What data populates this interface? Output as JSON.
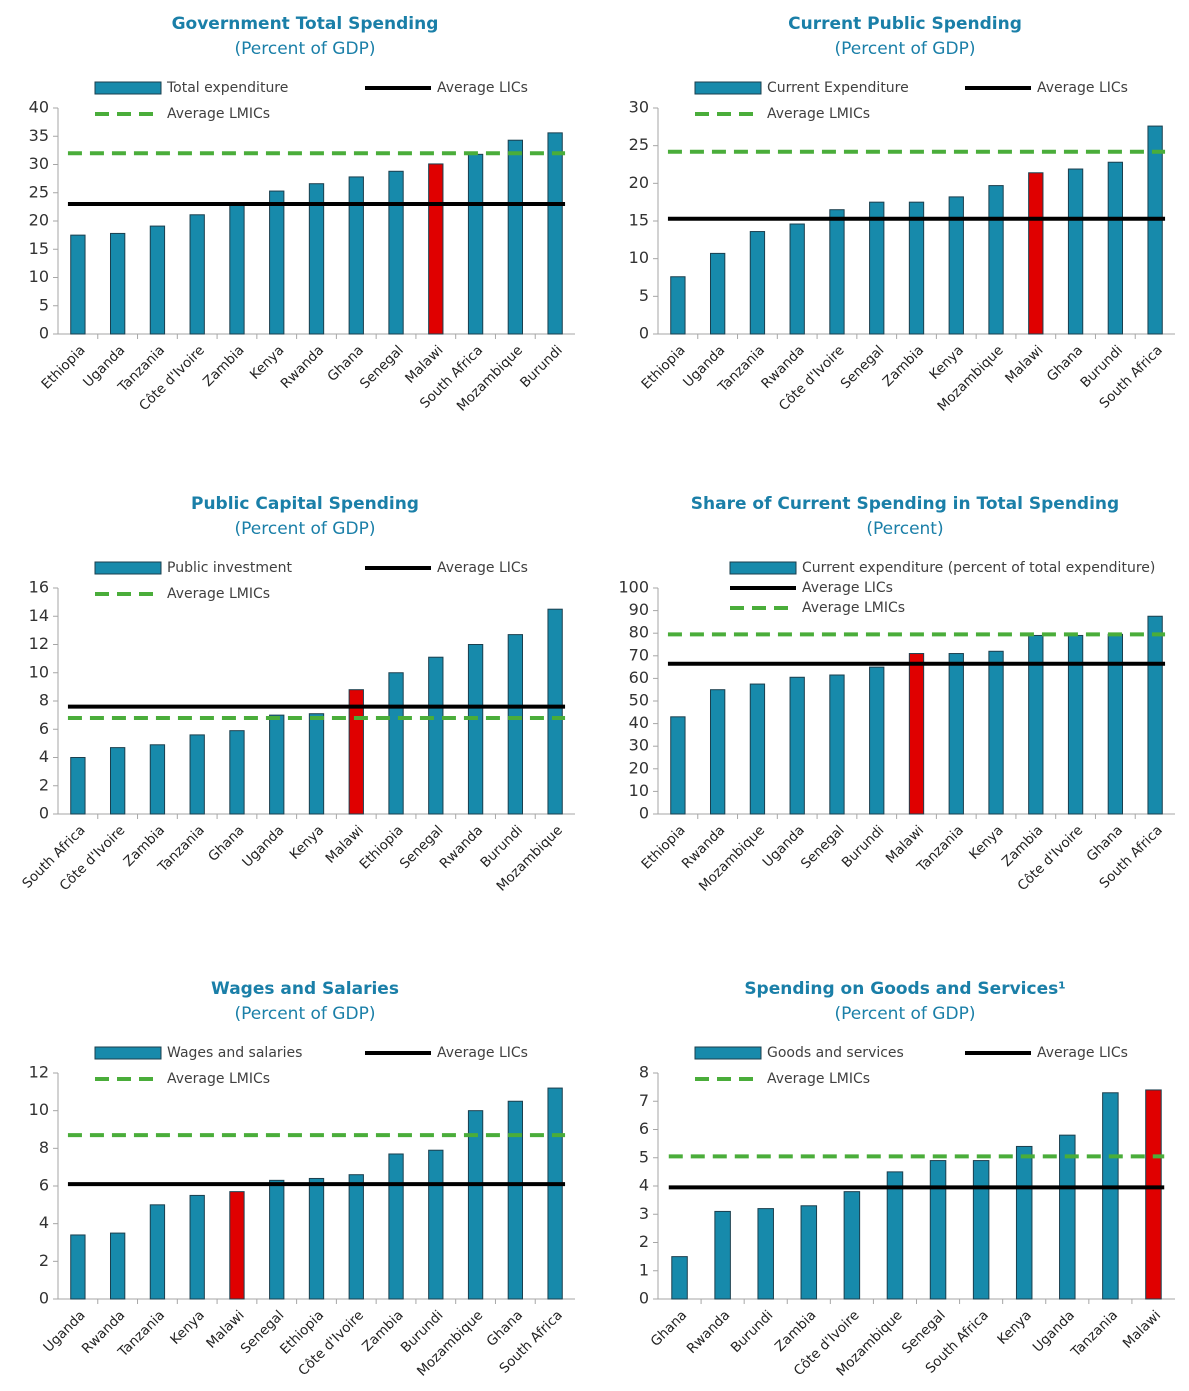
{
  "chart_data": [
    {
      "type": "bar",
      "title": "Government Total Spending",
      "subtitle": "(Percent of GDP)",
      "categories": [
        "Ethiopia",
        "Uganda",
        "Tanzania",
        "Côte d'Ivoire",
        "Zambia",
        "Kenya",
        "Rwanda",
        "Ghana",
        "Senegal",
        "Malawi",
        "South Africa",
        "Mozambique",
        "Burundi"
      ],
      "series": [
        {
          "name": "Total expenditure",
          "color": "#178aab",
          "values": [
            17.5,
            17.8,
            19.1,
            21.1,
            22.8,
            25.3,
            26.6,
            27.8,
            28.8,
            30.1,
            31.8,
            34.3,
            35.6
          ],
          "colors": [
            "#178aab",
            "#178aab",
            "#178aab",
            "#178aab",
            "#178aab",
            "#178aab",
            "#178aab",
            "#178aab",
            "#178aab",
            "#e00000",
            "#178aab",
            "#178aab",
            "#178aab"
          ]
        }
      ],
      "lines": [
        {
          "name": "Average LICs",
          "value": 23.0,
          "color": "#000000",
          "style": "solid"
        },
        {
          "name": "Average LMICs",
          "value": 32.0,
          "color": "#4aad3a",
          "style": "dashed"
        }
      ],
      "ylim": [
        0,
        40
      ],
      "yticks": [
        0,
        5,
        10,
        15,
        20,
        25,
        30,
        35,
        40
      ],
      "legend": "two-column"
    },
    {
      "type": "bar",
      "title": "Current Public Spending",
      "subtitle": "(Percent of GDP)",
      "categories": [
        "Ethiopia",
        "Uganda",
        "Tanzania",
        "Rwanda",
        "Côte d'Ivoire",
        "Senegal",
        "Zambia",
        "Kenya",
        "Mozambique",
        "Malawi",
        "Ghana",
        "Burundi",
        "South Africa"
      ],
      "series": [
        {
          "name": "Current Expenditure",
          "color": "#178aab",
          "values": [
            7.6,
            10.7,
            13.6,
            14.6,
            16.5,
            17.5,
            17.5,
            18.2,
            19.7,
            21.4,
            21.9,
            22.8,
            27.6
          ],
          "colors": [
            "#178aab",
            "#178aab",
            "#178aab",
            "#178aab",
            "#178aab",
            "#178aab",
            "#178aab",
            "#178aab",
            "#178aab",
            "#e00000",
            "#178aab",
            "#178aab",
            "#178aab"
          ]
        }
      ],
      "lines": [
        {
          "name": "Average LICs",
          "value": 15.3,
          "color": "#000000",
          "style": "solid"
        },
        {
          "name": "Average LMICs",
          "value": 24.2,
          "color": "#4aad3a",
          "style": "dashed"
        }
      ],
      "ylim": [
        0,
        30
      ],
      "yticks": [
        0,
        5,
        10,
        15,
        20,
        25,
        30
      ],
      "legend": "two-column"
    },
    {
      "type": "bar",
      "title": "Public Capital Spending",
      "subtitle": "(Percent of GDP)",
      "categories": [
        "South Africa",
        "Côte d'Ivoire",
        "Zambia",
        "Tanzania",
        "Ghana",
        "Uganda",
        "Kenya",
        "Malawi",
        "Ethiopia",
        "Senegal",
        "Rwanda",
        "Burundi",
        "Mozambique"
      ],
      "series": [
        {
          "name": "Public investment",
          "color": "#178aab",
          "values": [
            4.0,
            4.7,
            4.9,
            5.6,
            5.9,
            7.0,
            7.1,
            8.8,
            10.0,
            11.1,
            12.0,
            12.7,
            14.5
          ],
          "colors": [
            "#178aab",
            "#178aab",
            "#178aab",
            "#178aab",
            "#178aab",
            "#178aab",
            "#178aab",
            "#e00000",
            "#178aab",
            "#178aab",
            "#178aab",
            "#178aab",
            "#178aab"
          ]
        }
      ],
      "lines": [
        {
          "name": "Average LICs",
          "value": 7.6,
          "color": "#000000",
          "style": "solid"
        },
        {
          "name": "Average LMICs",
          "value": 6.8,
          "color": "#4aad3a",
          "style": "dashed"
        }
      ],
      "ylim": [
        0,
        16
      ],
      "yticks": [
        0,
        2,
        4,
        6,
        8,
        10,
        12,
        14,
        16
      ],
      "legend": "two-column"
    },
    {
      "type": "bar",
      "title": "Share of Current Spending in Total Spending",
      "subtitle": "(Percent)",
      "categories": [
        "Ethiopia",
        "Rwanda",
        "Mozambique",
        "Uganda",
        "Senegal",
        "Burundi",
        "Malawi",
        "Tanzania",
        "Kenya",
        "Zambia",
        "Côte d'Ivoire",
        "Ghana",
        "South Africa"
      ],
      "series": [
        {
          "name": "Current expenditure (percent of total expenditure)",
          "color": "#178aab",
          "values": [
            43,
            55,
            57.5,
            60.5,
            61.5,
            65,
            71,
            71,
            72,
            79,
            79,
            79.5,
            87.5
          ],
          "colors": [
            "#178aab",
            "#178aab",
            "#178aab",
            "#178aab",
            "#178aab",
            "#178aab",
            "#e00000",
            "#178aab",
            "#178aab",
            "#178aab",
            "#178aab",
            "#178aab",
            "#178aab"
          ]
        }
      ],
      "lines": [
        {
          "name": "Average LICs",
          "value": 66.5,
          "color": "#000000",
          "style": "solid"
        },
        {
          "name": "Average LMICs",
          "value": 79.5,
          "color": "#4aad3a",
          "style": "dashed"
        }
      ],
      "ylim": [
        0,
        100
      ],
      "yticks": [
        0,
        10,
        20,
        30,
        40,
        50,
        60,
        70,
        80,
        90,
        100
      ],
      "legend": "stacked"
    },
    {
      "type": "bar",
      "title": "Wages and Salaries",
      "subtitle": "(Percent of GDP)",
      "categories": [
        "Uganda",
        "Rwanda",
        "Tanzania",
        "Kenya",
        "Malawi",
        "Senegal",
        "Ethiopia",
        "Côte d'Ivoire",
        "Zambia",
        "Burundi",
        "Mozambique",
        "Ghana",
        "South Africa"
      ],
      "series": [
        {
          "name": "Wages and salaries",
          "color": "#178aab",
          "values": [
            3.4,
            3.5,
            5.0,
            5.5,
            5.7,
            6.3,
            6.4,
            6.6,
            7.7,
            7.9,
            10.0,
            10.5,
            11.2
          ],
          "colors": [
            "#178aab",
            "#178aab",
            "#178aab",
            "#178aab",
            "#e00000",
            "#178aab",
            "#178aab",
            "#178aab",
            "#178aab",
            "#178aab",
            "#178aab",
            "#178aab",
            "#178aab"
          ]
        }
      ],
      "lines": [
        {
          "name": "Average LICs",
          "value": 6.1,
          "color": "#000000",
          "style": "solid"
        },
        {
          "name": "Average LMICs",
          "value": 8.7,
          "color": "#4aad3a",
          "style": "dashed"
        }
      ],
      "ylim": [
        0,
        12
      ],
      "yticks": [
        0,
        2,
        4,
        6,
        8,
        10,
        12
      ],
      "legend": "two-column"
    },
    {
      "type": "bar",
      "title": "Spending on Goods and Services¹",
      "subtitle": "(Percent of GDP)",
      "categories": [
        "Ghana",
        "Rwanda",
        "Burundi",
        "Zambia",
        "Côte d'Ivoire",
        "Mozambique",
        "Senegal",
        "South Africa",
        "Kenya",
        "Uganda",
        "Tanzania",
        "Malawi"
      ],
      "series": [
        {
          "name": "Goods and services",
          "color": "#178aab",
          "values": [
            1.5,
            3.1,
            3.2,
            3.3,
            3.8,
            4.5,
            4.9,
            4.9,
            5.4,
            5.8,
            7.3,
            7.4
          ],
          "colors": [
            "#178aab",
            "#178aab",
            "#178aab",
            "#178aab",
            "#178aab",
            "#178aab",
            "#178aab",
            "#178aab",
            "#178aab",
            "#178aab",
            "#178aab",
            "#e00000"
          ]
        }
      ],
      "lines": [
        {
          "name": "Average LICs",
          "value": 3.95,
          "color": "#000000",
          "style": "solid"
        },
        {
          "name": "Average LMICs",
          "value": 5.05,
          "color": "#4aad3a",
          "style": "dashed"
        }
      ],
      "ylim": [
        0,
        8
      ],
      "yticks": [
        0,
        1,
        2,
        3,
        4,
        5,
        6,
        7,
        8
      ],
      "legend": "two-column"
    }
  ]
}
